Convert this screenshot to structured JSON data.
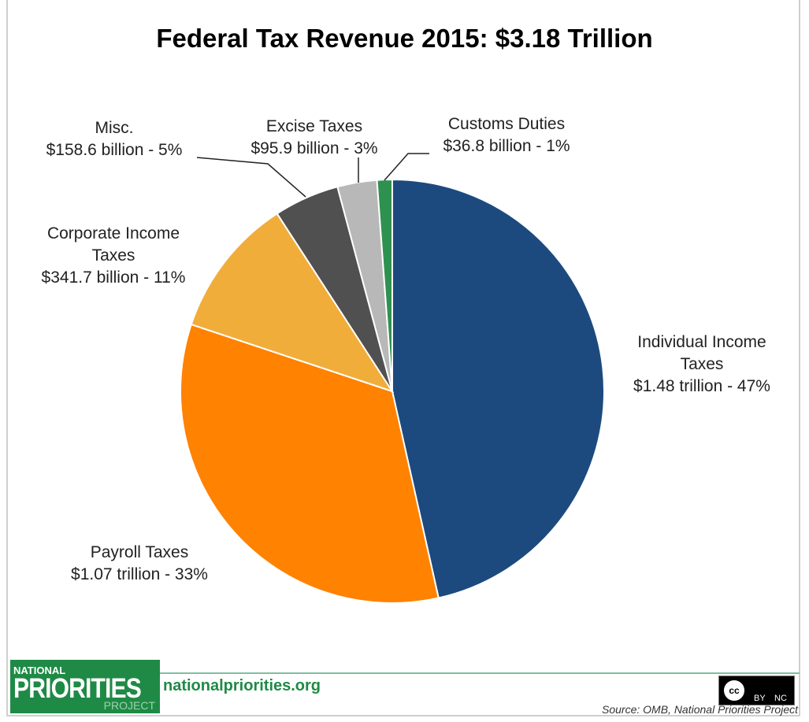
{
  "chart_data": {
    "type": "pie",
    "title": "Federal Tax Revenue 2015: $3.18 Trillion",
    "start": "12 o'clock, clockwise",
    "slices": [
      {
        "name": "Individual Income Taxes",
        "value": 1480,
        "unit": "billion",
        "label_lines": [
          "Individual Income",
          "Taxes",
          "$1.48 trillion - 47%"
        ],
        "percent": 47,
        "color": "#1c4a7e"
      },
      {
        "name": "Payroll Taxes",
        "value": 1070,
        "unit": "billion",
        "label_lines": [
          "Payroll Taxes",
          "$1.07 trillion - 33%"
        ],
        "percent": 33,
        "color": "#ff8200"
      },
      {
        "name": "Corporate Income Taxes",
        "value": 341.7,
        "unit": "billion",
        "label_lines": [
          "Corporate Income",
          "Taxes",
          "$341.7 billion - 11%"
        ],
        "percent": 11,
        "color": "#f1ad3a"
      },
      {
        "name": "Misc.",
        "value": 158.6,
        "unit": "billion",
        "label_lines": [
          "Misc.",
          "$158.6 billion - 5%"
        ],
        "percent": 5,
        "color": "#505050"
      },
      {
        "name": "Excise Taxes",
        "value": 95.9,
        "unit": "billion",
        "label_lines": [
          "Excise Taxes",
          "$95.9 billion - 3%"
        ],
        "percent": 3,
        "color": "#b8b8b8"
      },
      {
        "name": "Customs Duties",
        "value": 36.8,
        "unit": "billion",
        "label_lines": [
          "Customs Duties",
          "$36.8 billion - 1%"
        ],
        "percent": 1,
        "color": "#2f9150"
      }
    ]
  },
  "footer": {
    "logo_text": [
      "NATIONAL",
      "PRIORITIES",
      "PROJECT"
    ],
    "website": "nationalpriorities.org",
    "license": [
      "cc",
      "BY",
      "NC"
    ],
    "source": "Source: OMB, National Priorities Project"
  }
}
